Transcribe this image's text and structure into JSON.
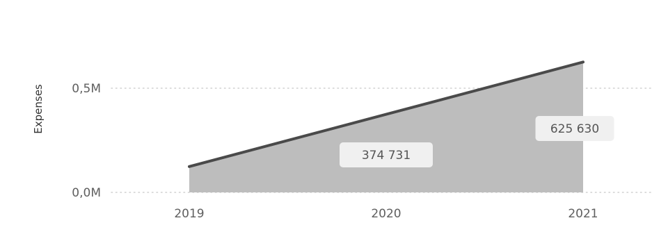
{
  "chart_data": {
    "type": "area",
    "x": [
      "2019",
      "2020",
      "2021"
    ],
    "values": [
      123832,
      374731,
      625630
    ],
    "ylabel": "Expenses",
    "yticks": [
      "0,0M",
      "0,5M"
    ],
    "ytick_values": [
      0,
      500000
    ],
    "ylim": [
      0,
      680000
    ],
    "data_labels": [
      {
        "x": "2020",
        "text": "374 731"
      },
      {
        "x": "2021",
        "text": "625 630"
      }
    ],
    "grid": "dotted horizontal",
    "colors": {
      "fill": "#bdbdbd",
      "line": "#4a4a4a",
      "grid": "#d0d0d0",
      "label_bg": "#f0f0f0"
    }
  }
}
